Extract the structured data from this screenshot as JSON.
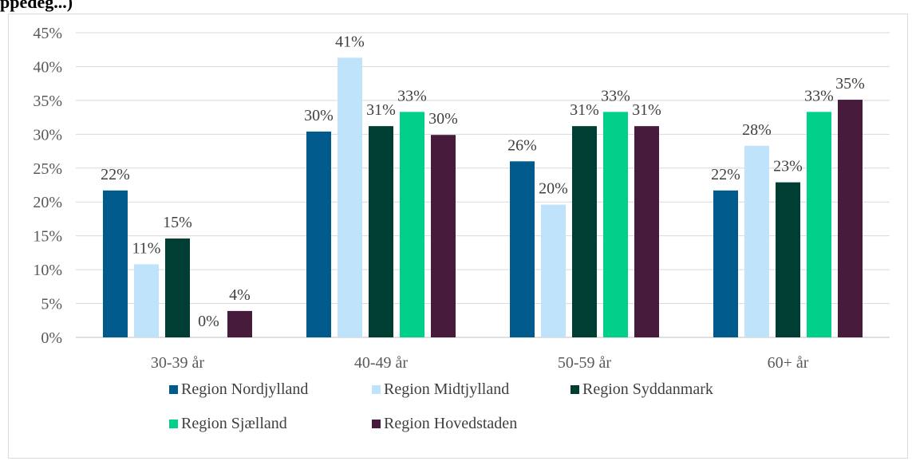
{
  "page": {
    "top_fragment": "ppedeg...)"
  },
  "chart_data": {
    "type": "bar",
    "categories": [
      "30-39 år",
      "40-49 år",
      "50-59 år",
      "60+ år"
    ],
    "series": [
      {
        "name": "Region Nordjylland",
        "color": "#005a8c",
        "values": [
          21.7,
          30.4,
          26.0,
          21.7
        ],
        "labels": [
          "22%",
          "30%",
          "26%",
          "22%"
        ]
      },
      {
        "name": "Region Midtjylland",
        "color": "#bfe3fb",
        "values": [
          10.8,
          41.3,
          19.6,
          28.3
        ],
        "labels": [
          "11%",
          "41%",
          "20%",
          "28%"
        ]
      },
      {
        "name": "Region Syddanmark",
        "color": "#003d33",
        "values": [
          14.6,
          31.2,
          31.2,
          22.9
        ],
        "labels": [
          "15%",
          "31%",
          "31%",
          "23%"
        ]
      },
      {
        "name": "Region Sjælland",
        "color": "#00d08a",
        "values": [
          0,
          33.3,
          33.3,
          33.3
        ],
        "labels": [
          "0%",
          "33%",
          "33%",
          "33%"
        ]
      },
      {
        "name": "Region Hovedstaden",
        "color": "#461b3c",
        "values": [
          3.9,
          29.9,
          31.2,
          35.1
        ],
        "labels": [
          "4%",
          "30%",
          "31%",
          "35%"
        ]
      }
    ],
    "ylim": [
      0,
      45
    ],
    "yticks": [
      "0%",
      "5%",
      "10%",
      "15%",
      "20%",
      "25%",
      "30%",
      "35%",
      "40%",
      "45%"
    ],
    "grid": true,
    "legend_position": "bottom"
  }
}
